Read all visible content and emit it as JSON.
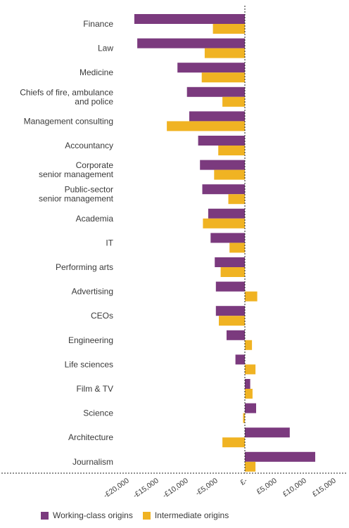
{
  "chart_data": {
    "type": "bar",
    "orientation": "horizontal",
    "categories": [
      "Finance",
      "Law",
      "Medicine",
      "Chiefs of fire, ambulance\nand police",
      "Management consulting",
      "Accountancy",
      "Corporate\nsenior management",
      "Public-sector\nsenior management",
      "Academia",
      "IT",
      "Performing arts",
      "Advertising",
      "CEOs",
      "Engineering",
      "Life sciences",
      "Film & TV",
      "Science",
      "Architecture",
      "Journalism"
    ],
    "series": [
      {
        "name": "Working-class origins",
        "color": "#7b3a7e",
        "values": [
          -18700,
          -18200,
          -11400,
          -9800,
          -9400,
          -7900,
          -7600,
          -7200,
          -6200,
          -5800,
          -5100,
          -4900,
          -4900,
          -3100,
          -1600,
          900,
          1900,
          7600,
          11900
        ]
      },
      {
        "name": "Intermediate origins",
        "color": "#f0b323",
        "values": [
          -5400,
          -6800,
          -7300,
          -3800,
          -13200,
          -4500,
          -5200,
          -2800,
          -7100,
          -2600,
          -4100,
          2100,
          -4400,
          1200,
          1800,
          1300,
          -300,
          -3800,
          1800
        ]
      }
    ],
    "xlim": [
      -20000,
      15000
    ],
    "xticks": [
      -20000,
      -15000,
      -10000,
      -5000,
      0,
      5000,
      10000,
      15000
    ],
    "xtick_labels": [
      "-£20,000",
      "-£15,000",
      "-£10,000",
      "-£5,000",
      "£-",
      "£5,000",
      "£10,000",
      "£15,000"
    ],
    "grid": false,
    "legend_position": "bottom-left"
  },
  "legend": {
    "items": [
      {
        "label": "Working-class origins",
        "color": "#7b3a7e"
      },
      {
        "label": "Intermediate origins",
        "color": "#f0b323"
      }
    ]
  }
}
